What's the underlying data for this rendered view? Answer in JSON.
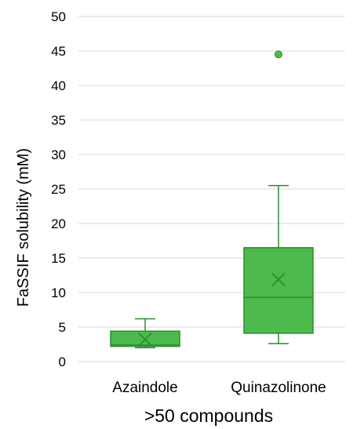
{
  "chart_data": {
    "type": "box",
    "title": "",
    "xlabel": ">50 compounds",
    "ylabel": "FaSSIF solubility (mM)",
    "ylim": [
      0,
      50
    ],
    "yticks": [
      0,
      5,
      10,
      15,
      20,
      25,
      30,
      35,
      40,
      45,
      50
    ],
    "grid": true,
    "colors": {
      "box_fill": "#4dba4d",
      "box_stroke": "#2f8a2f",
      "grid": "#d9d9d9"
    },
    "categories": [
      "Azaindole",
      "Quinazolinone"
    ],
    "boxes": [
      {
        "category": "Azaindole",
        "min": 2.0,
        "q1": 2.2,
        "median": 2.4,
        "q3": 4.4,
        "max": 6.2,
        "mean": 3.2,
        "outliers": []
      },
      {
        "category": "Quinazolinone",
        "min": 2.6,
        "q1": 4.1,
        "median": 9.3,
        "q3": 16.5,
        "max": 25.5,
        "mean": 11.9,
        "outliers": [
          44.5
        ]
      }
    ]
  }
}
